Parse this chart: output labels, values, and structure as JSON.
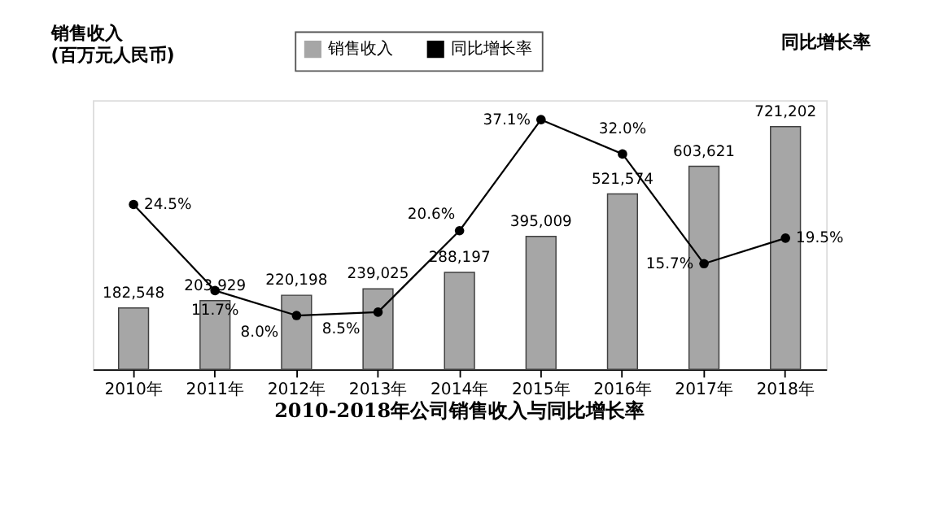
{
  "chart_data": {
    "type": "bar",
    "title": "2010-2018年公司销售收入与同比增长率",
    "ylabel": "销售收入\n(百万元人民币)",
    "y2label": "同比增长率",
    "categories": [
      "2010年",
      "2011年",
      "2012年",
      "2013年",
      "2014年",
      "2015年",
      "2016年",
      "2017年",
      "2018年"
    ],
    "series": [
      {
        "name": "销售收入",
        "color": "#a6a6a6",
        "values": [
          182548,
          203929,
          220198,
          239025,
          288197,
          395009,
          521574,
          603621,
          721202
        ],
        "value_labels": [
          "182,548",
          "203,929",
          "220,198",
          "239,025",
          "288,197",
          "395,009",
          "521,574",
          "603,621",
          "721,202"
        ]
      },
      {
        "name": "同比增长率",
        "type": "line",
        "axis": "y2",
        "color": "#000000",
        "values": [
          24.5,
          11.7,
          8.0,
          8.5,
          20.6,
          37.1,
          32.0,
          15.7,
          19.5
        ],
        "value_labels": [
          "24.5%",
          "11.7%",
          "8.0%",
          "8.5%",
          "20.6%",
          "37.1%",
          "32.0%",
          "15.7%",
          "19.5%"
        ]
      }
    ],
    "ylim": [
      0,
      800000
    ],
    "y2lim": [
      0,
      40
    ],
    "tick_labels": "x",
    "grid": false,
    "legend": "top",
    "marker": "circle",
    "line_style": "solid"
  }
}
